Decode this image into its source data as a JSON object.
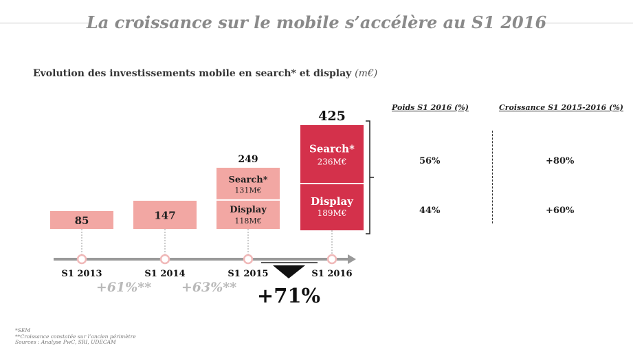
{
  "title": "La croissance sur le mobile s’accélère au S1 2016",
  "subtitle": "Evolution des investissements mobile en search* et display",
  "subtitle_unit": "(m€)",
  "colors": {
    "light_bar": "#f2a7a3",
    "dark_bar": "#d4314b",
    "axis": "#999999",
    "growth": "#b9b9b9"
  },
  "chart_data": {
    "type": "bar",
    "categories": [
      "S1 2013",
      "S1 2014",
      "S1 2015",
      "S1 2016"
    ],
    "totals": [
      85,
      147,
      249,
      425
    ],
    "series": [
      {
        "name": "Search*",
        "values": [
          null,
          null,
          131,
          236
        ],
        "labels": [
          "",
          "",
          "131M€",
          "236M€"
        ]
      },
      {
        "name": "Display",
        "values": [
          null,
          null,
          118,
          189
        ],
        "labels": [
          "",
          "",
          "118M€",
          "189M€"
        ]
      }
    ],
    "growth_labels": [
      "+61%**",
      "+63%**"
    ],
    "headline_growth": "+71%"
  },
  "table": {
    "col1_header": "Poids S1 2016 (%)",
    "col2_header": "Croissance  S1 2015-2016 (%)",
    "rows": [
      {
        "poids": "56%",
        "croissance": "+80%"
      },
      {
        "poids": "44%",
        "croissance": "+60%"
      }
    ]
  },
  "footnotes": [
    "*SEM",
    "**Croissance constatée sur l’ancien périmètre",
    "Sources : Analyse PwC, SRI, UDECAM"
  ]
}
